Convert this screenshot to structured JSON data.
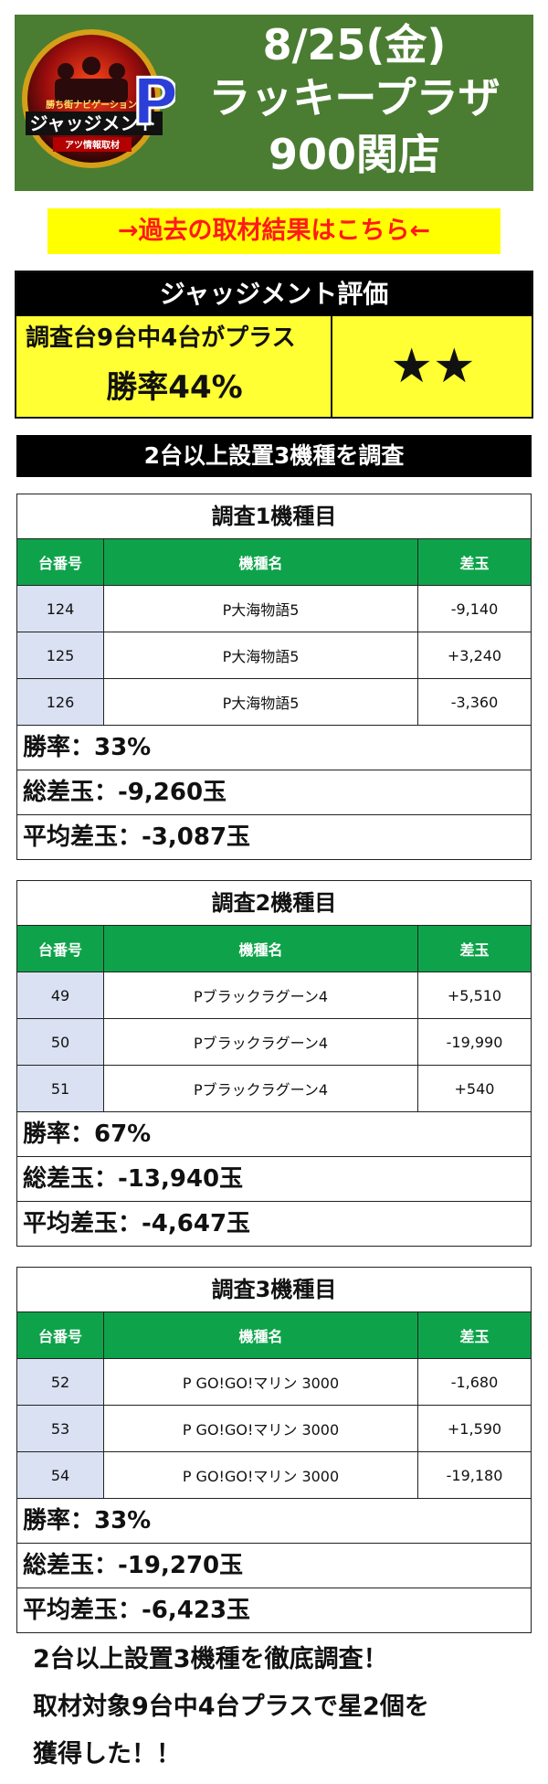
{
  "header": {
    "logo_line1": "ジャッジメント",
    "logo_sub": "アツ情報取材",
    "logo_caption": "勝ち街ナビゲーション",
    "logo_p": "P",
    "date": "8/25(金)",
    "store": "ラッキープラザ",
    "branch": "900関店",
    "bg_color": "#4a7d32"
  },
  "past_link": "→過去の取材結果はこちら←",
  "judgment": {
    "title": "ジャッジメント評価",
    "line1": "調査台9台中4台がプラス",
    "line2": "勝率44%",
    "stars": "★★"
  },
  "survey_banner": "2台以上設置3機種を調査",
  "table_headers": {
    "machine_no": "台番号",
    "model": "機種名",
    "diff": "差玉"
  },
  "machines": [
    {
      "title": "調査1機種目",
      "rows": [
        {
          "no": "124",
          "model": "P大海物語5",
          "diff": "-9,140"
        },
        {
          "no": "125",
          "model": "P大海物語5",
          "diff": "+3,240"
        },
        {
          "no": "126",
          "model": "P大海物語5",
          "diff": "-3,360"
        }
      ],
      "win_rate": "勝率：33%",
      "total": "総差玉：-9,260玉",
      "average": "平均差玉：-3,087玉"
    },
    {
      "title": "調査2機種目",
      "rows": [
        {
          "no": "49",
          "model": "Pブラックラグーン4",
          "diff": "+5,510"
        },
        {
          "no": "50",
          "model": "Pブラックラグーン4",
          "diff": "-19,990"
        },
        {
          "no": "51",
          "model": "Pブラックラグーン4",
          "diff": "+540"
        }
      ],
      "win_rate": "勝率：67%",
      "total": "総差玉：-13,940玉",
      "average": "平均差玉：-4,647玉"
    },
    {
      "title": "調査3機種目",
      "rows": [
        {
          "no": "52",
          "model": "P GO!GO!マリン 3000",
          "diff": "-1,680"
        },
        {
          "no": "53",
          "model": "P GO!GO!マリン 3000",
          "diff": "+1,590"
        },
        {
          "no": "54",
          "model": "P GO!GO!マリン 3000",
          "diff": "-19,180"
        }
      ],
      "win_rate": "勝率：33%",
      "total": "総差玉：-19,270玉",
      "average": "平均差玉：-6,423玉"
    }
  ],
  "conclusion": {
    "line1": "2台以上設置3機種を徹底調査！",
    "line2": "取材対象9台中4台プラスで星2個を",
    "line3": "獲得した！！"
  }
}
